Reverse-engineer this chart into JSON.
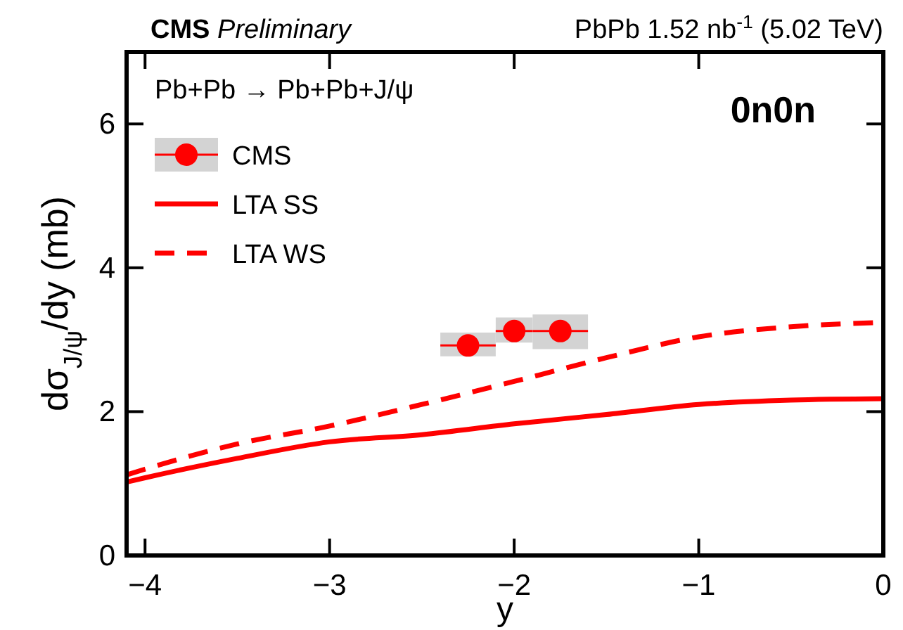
{
  "chart_data": {
    "type": "line",
    "title": "CMS",
    "subtitle": "Preliminary",
    "xlabel": "y",
    "ylabel": "dσ$_{J/ψ}$/dy (mb)",
    "annotations": [
      "PbPb 1.52 nb$^{-1}$ (5.02 TeV)",
      "Pb+Pb → Pb+Pb+J/ψ",
      "0n0n"
    ],
    "xlim": [
      -4.1,
      0
    ],
    "xticks": [
      {
        "value": -4,
        "label": "−4"
      },
      {
        "value": -3,
        "label": "−3"
      },
      {
        "value": -2,
        "label": "−2"
      },
      {
        "value": -1,
        "label": "−1"
      },
      0
    ],
    "ylim": [
      0,
      7
    ],
    "yticks": [
      0,
      2,
      4,
      6
    ],
    "grid": false,
    "legend": "top left",
    "series": [
      {
        "name": "CMS",
        "type": "scatter",
        "marker": "circle",
        "color": "#ff0000",
        "x": [
          -2.25,
          -2.0,
          -1.75
        ],
        "values": [
          2.92,
          3.12,
          3.12
        ],
        "errors": [
          [
            2.77,
            3.1
          ],
          [
            2.96,
            3.31
          ],
          [
            2.87,
            3.35
          ]
        ],
        "xerrors": [
          [
            -2.4,
            -2.1
          ],
          [
            -2.1,
            -1.9
          ],
          [
            -1.9,
            -1.6
          ]
        ]
      },
      {
        "name": "LTA SS",
        "line_style": "solid",
        "color": "#ff0000",
        "x": [
          -4.1,
          -4,
          -3.5,
          -3,
          -2.5,
          -2,
          -1.5,
          -1,
          -0.5,
          0
        ],
        "values": [
          1.02,
          1.08,
          1.35,
          1.58,
          1.68,
          1.83,
          1.96,
          2.1,
          2.16,
          2.18
        ]
      },
      {
        "name": "LTA WS",
        "line_style": "dashed",
        "color": "#ff0000",
        "x": [
          -4.1,
          -4,
          -3.5,
          -3,
          -2.5,
          -2,
          -1.5,
          -1,
          -0.5,
          0
        ],
        "values": [
          1.12,
          1.2,
          1.55,
          1.8,
          2.1,
          2.42,
          2.75,
          3.04,
          3.18,
          3.24
        ]
      }
    ]
  }
}
